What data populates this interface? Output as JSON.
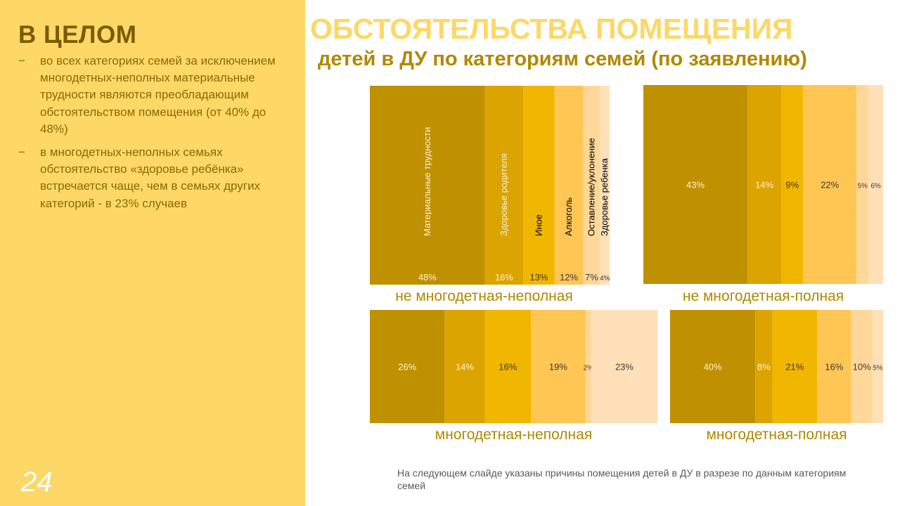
{
  "left": {
    "heading": "В ЦЕЛОМ",
    "bullets": [
      {
        "dash": "−",
        "text": "во всех категориях семей за исключением многодетных-неполных материальные трудности являются преобладающим обстоятельством помещения (от 40% до 48%)"
      },
      {
        "dash": "−",
        "text": "в многодетных-неполных семьях обстоятельство «здоровье ребёнка» встречается чаще, чем в семьях других категорий - в 23% случаев"
      }
    ],
    "page_number": "24"
  },
  "title": "ОБСТОЯТЕЛЬСТВА ПОМЕЩЕНИЯ",
  "subtitle": "детей в ДУ по категориям семей (по заявлению)",
  "footnote": "На следующем слайде указаны причины помещения детей в ДУ в разрезе по данным категориям семей",
  "colors": {
    "panel": "#FDD867",
    "heading": "#7A5C00",
    "title": "#FDD867",
    "subtitle": "#B08800",
    "category_label": "#B08800",
    "segments": [
      "#BF9000",
      "#DBA400",
      "#F1B600",
      "#FFC654",
      "#FFD899",
      "#FFE0B8"
    ]
  },
  "chart_data": [
    {
      "type": "bar",
      "subtype": "100% stacked (horizontal mosaic)",
      "title": "не многодетная-неполная",
      "categories": [
        "Материальные трудности",
        "Здоровье родителя",
        "Иное",
        "Алкоголь",
        "Оставление/уклонение",
        "Здоровье ребенка"
      ],
      "values": [
        48,
        16,
        13,
        12,
        7,
        4
      ],
      "value_labels": [
        "48%",
        "16%",
        "13%",
        "12%",
        "7%",
        "4%"
      ]
    },
    {
      "type": "bar",
      "subtype": "100% stacked (horizontal mosaic)",
      "title": "не многодетная-полная",
      "values": [
        43,
        14,
        9,
        22,
        5,
        6
      ],
      "value_labels": [
        "43%",
        "14%",
        "9%",
        "22%",
        "5%",
        "6%"
      ]
    },
    {
      "type": "bar",
      "subtype": "100% stacked (horizontal mosaic)",
      "title": "многодетная-неполная",
      "values": [
        26,
        14,
        16,
        19,
        2,
        23
      ],
      "value_labels": [
        "26%",
        "14%",
        "16%",
        "19%",
        "2%",
        "23%"
      ]
    },
    {
      "type": "bar",
      "subtype": "100% stacked (horizontal mosaic)",
      "title": "многодетная-полная",
      "values": [
        40,
        8,
        21,
        16,
        10,
        5
      ],
      "value_labels": [
        "40%",
        "8%",
        "21%",
        "16%",
        "10%",
        "5%"
      ]
    }
  ]
}
